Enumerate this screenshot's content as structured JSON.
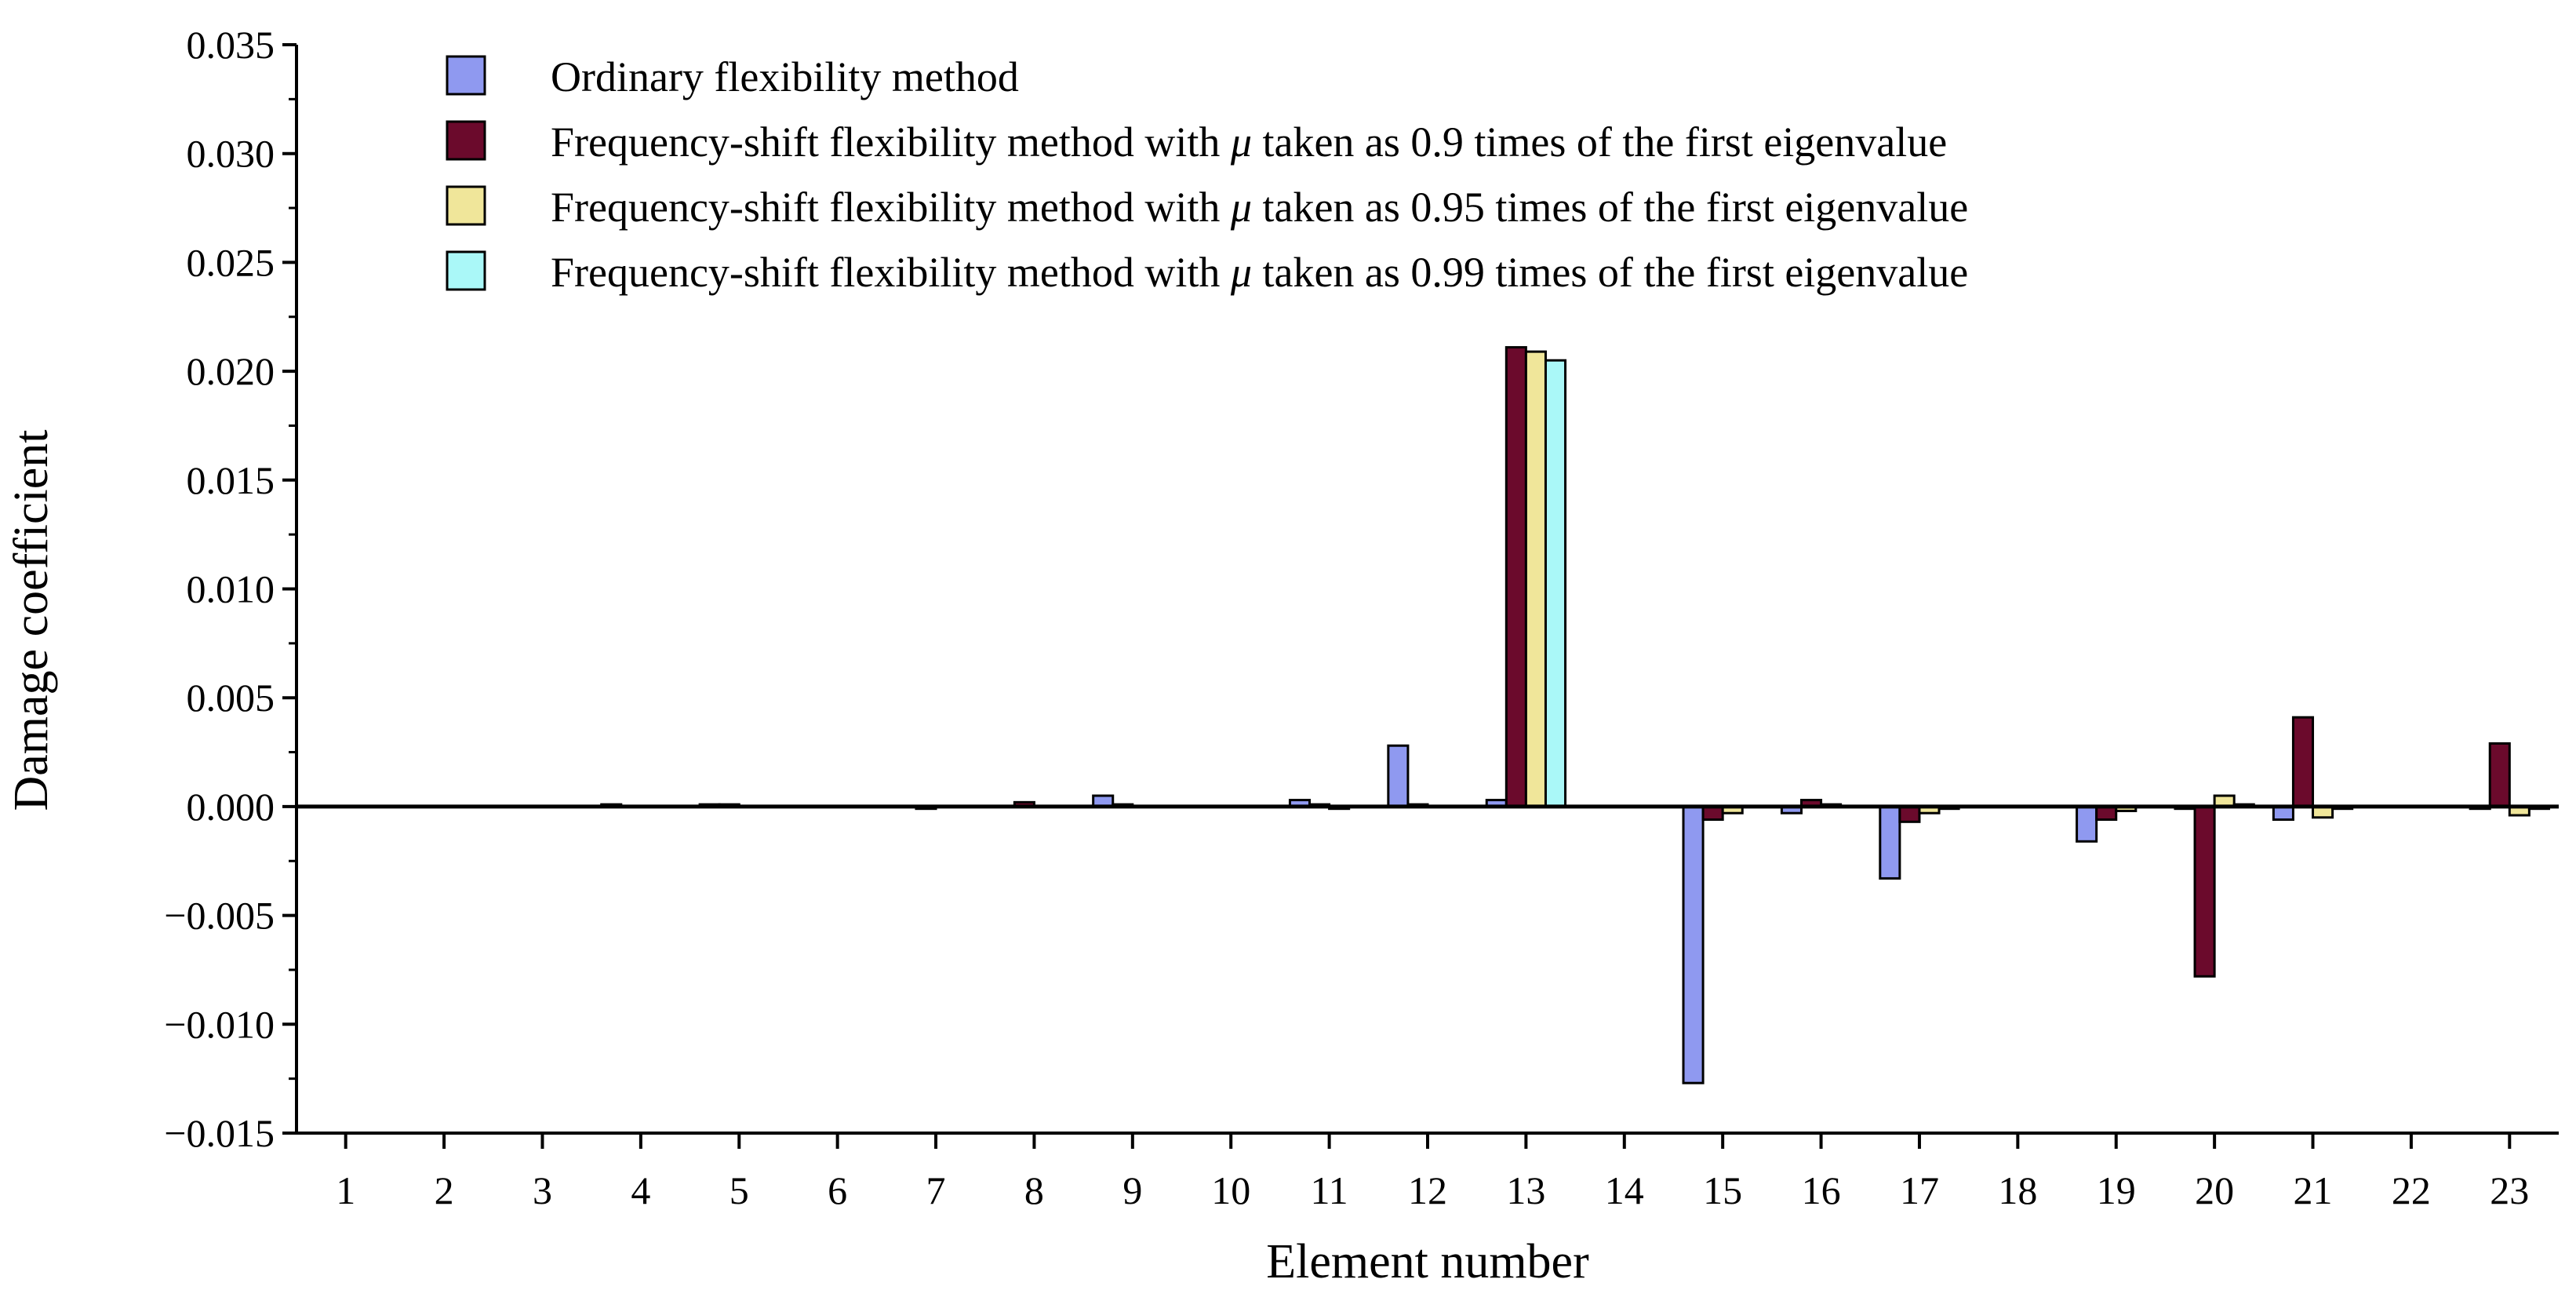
{
  "chart_data": {
    "type": "bar",
    "title": "",
    "xlabel": "Element number",
    "ylabel": "Damage coefficient",
    "ylim": [
      -0.015,
      0.035
    ],
    "yticks": [
      -0.015,
      -0.01,
      -0.005,
      0.0,
      0.005,
      0.01,
      0.015,
      0.02,
      0.025,
      0.03,
      0.035
    ],
    "ytick_labels": [
      "−0.015",
      "−0.010",
      "−0.005",
      "0.000",
      "0.005",
      "0.010",
      "0.015",
      "0.020",
      "0.025",
      "0.030",
      "0.035"
    ],
    "categories": [
      "1",
      "2",
      "3",
      "4",
      "5",
      "6",
      "7",
      "8",
      "9",
      "10",
      "11",
      "12",
      "13",
      "14",
      "15",
      "16",
      "17",
      "18",
      "19",
      "20",
      "21",
      "22",
      "23"
    ],
    "legend_position": "top-left",
    "series": [
      {
        "name": "Ordinary flexibility method",
        "color": "#8f99f0",
        "values": [
          0,
          0,
          0,
          0.0001,
          0.0001,
          0,
          0,
          0,
          0.0005,
          0,
          0.0003,
          0.0028,
          0.0003,
          0,
          -0.0127,
          -0.0003,
          -0.0033,
          0,
          -0.0016,
          -0.0001,
          -0.0006,
          0,
          -0.0001
        ]
      },
      {
        "name_parts": [
          "Frequency-shift flexibility method with ",
          "μ",
          " taken as 0.9 times of the first eigenvalue"
        ],
        "color": "#6b0a2c",
        "values": [
          0,
          0,
          0,
          0,
          0.0001,
          0,
          -0.0001,
          0.0002,
          0.0001,
          0,
          0.0001,
          0.0001,
          0.0211,
          0,
          -0.0006,
          0.0003,
          -0.0007,
          0,
          -0.0006,
          -0.0078,
          0.0041,
          0,
          0.0029
        ]
      },
      {
        "name_parts": [
          "Frequency-shift flexibility method with ",
          "μ",
          " taken as 0.95 times of the first eigenvalue"
        ],
        "color": "#f0e69a",
        "values": [
          0,
          0,
          0,
          0,
          0,
          0,
          0,
          0,
          0,
          0,
          -0.0001,
          0,
          0.0209,
          0,
          -0.0003,
          0.0001,
          -0.0003,
          0,
          -0.0002,
          0.0005,
          -0.0005,
          0,
          -0.0004
        ]
      },
      {
        "name_parts": [
          "Frequency-shift flexibility method with ",
          "μ",
          " taken as 0.99 times of the first eigenvalue"
        ],
        "color": "#aaf8f8",
        "values": [
          0,
          0,
          0,
          0,
          0,
          0,
          0,
          0,
          0,
          0,
          0,
          0,
          0.0205,
          0,
          0,
          0,
          -0.0001,
          0,
          0,
          0.0001,
          -0.0001,
          0,
          -0.0001
        ]
      }
    ]
  }
}
